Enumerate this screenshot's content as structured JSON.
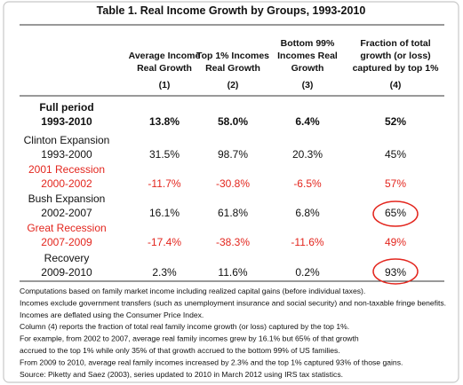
{
  "table": {
    "title": "Table 1. Real Income Growth by Groups, 1993-2010",
    "headers": [
      {
        "lines": [
          "Average Income",
          "Real Growth"
        ],
        "number": "(1)"
      },
      {
        "lines": [
          "Top 1% Incomes",
          "Real Growth"
        ],
        "number": "(2)"
      },
      {
        "lines": [
          "Bottom 99%",
          "Incomes Real",
          "Growth"
        ],
        "number": "(3)"
      },
      {
        "lines": [
          "Fraction of total",
          "growth (or loss)",
          "captured by top 1%"
        ],
        "number": "(4)"
      }
    ],
    "rows": [
      {
        "label": [
          "Full period",
          "1993-2010"
        ],
        "values": [
          "13.8%",
          "58.0%",
          "6.4%",
          "52%"
        ]
      },
      {
        "label": [
          "Clinton Expansion",
          "1993-2000"
        ],
        "values": [
          "31.5%",
          "98.7%",
          "20.3%",
          "45%"
        ]
      },
      {
        "label": [
          "2001 Recession",
          "2000-2002"
        ],
        "values": [
          "-11.7%",
          "-30.8%",
          "-6.5%",
          "57%"
        ]
      },
      {
        "label": [
          "Bush Expansion",
          "2002-2007"
        ],
        "values": [
          "16.1%",
          "61.8%",
          "6.8%",
          "65%"
        ]
      },
      {
        "label": [
          "Great Recession",
          "2007-2009"
        ],
        "values": [
          "-17.4%",
          "-38.3%",
          "-11.6%",
          "49%"
        ]
      },
      {
        "label": [
          "Recovery",
          "2009-2010"
        ],
        "values": [
          "2.3%",
          "11.6%",
          "0.2%",
          "93%"
        ]
      }
    ],
    "notes": [
      "Computations based on family market income including realized capital gains (before individual taxes).",
      "Incomes exclude government transfers (such as unemployment insurance and social security) and non-taxable fringe benefits.",
      "Incomes are deflated using the Consumer Price Index.",
      "Column (4) reports the fraction of total real family income growth (or loss) captured by the top 1%.",
      "For example, from 2002 to 2007, average real family incomes grew by 16.1% but 65% of that growth",
      "accrued to the top 1% while only 35% of that growth accrued to the bottom 99% of US families.",
      "From 2009 to 2010, average real family incomes increased by 2.3% and the top 1% captured 93% of those gains.",
      "Source: Piketty and Saez (2003), series updated to 2010 in March 2012 using IRS tax statistics."
    ]
  }
}
